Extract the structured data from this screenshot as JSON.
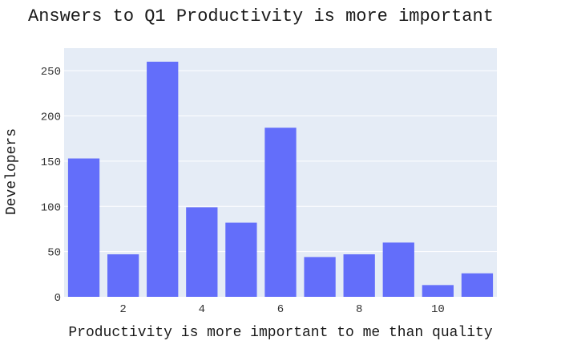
{
  "chart_data": {
    "type": "bar",
    "title": "Answers to Q1 Productivity is more important",
    "xlabel": "Productivity is more important to me than quality",
    "ylabel": "Developers",
    "x": [
      1,
      2,
      3,
      4,
      5,
      6,
      7,
      8,
      9,
      10,
      11
    ],
    "values": [
      153,
      47,
      260,
      99,
      82,
      187,
      44,
      47,
      60,
      13,
      26
    ],
    "xlim": [
      0.5,
      11.5
    ],
    "ylim": [
      0,
      275
    ],
    "xticks": [
      2,
      4,
      6,
      8,
      10
    ],
    "yticks": [
      0,
      50,
      100,
      150,
      200,
      250
    ],
    "grid": true,
    "colors": {
      "bar": "#636efa",
      "plot_bg": "#e5ecf6",
      "grid": "#ffffff"
    }
  }
}
